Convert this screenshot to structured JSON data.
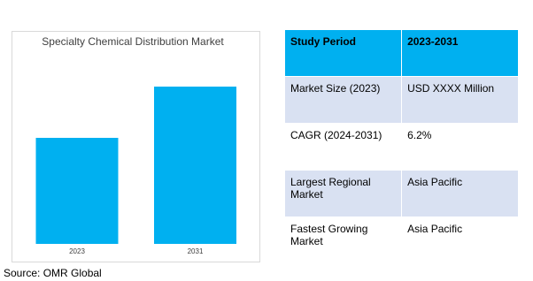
{
  "chart_data": {
    "type": "bar",
    "title": "Specialty Chemical Distribution Market",
    "categories": [
      "2023",
      "2031"
    ],
    "values": [
      120,
      178
    ],
    "color": "#00b0f0",
    "ylim": [
      0,
      200
    ]
  },
  "table": {
    "header": [
      "Study Period",
      "2023-2031"
    ],
    "rows": [
      [
        "Market Size (2023)",
        "USD XXXX Million"
      ],
      [
        "CAGR (2024-2031)",
        "6.2%"
      ],
      [
        "Largest Regional Market",
        "Asia Pacific"
      ],
      [
        "Fastest Growing Market",
        "Asia Pacific"
      ]
    ]
  },
  "source": "Source: OMR Global"
}
